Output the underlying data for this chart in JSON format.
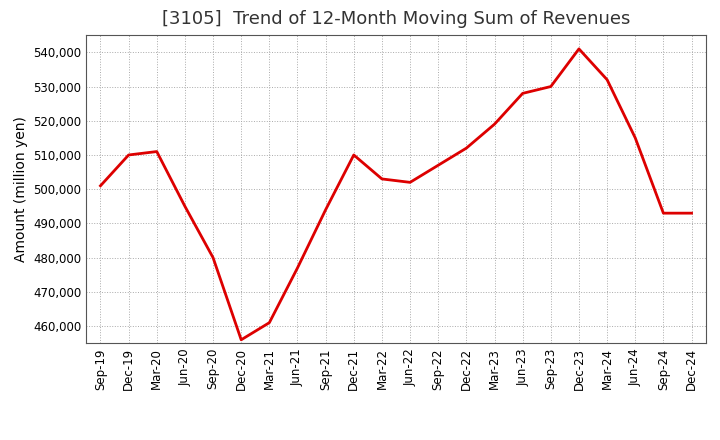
{
  "title": "[3105]  Trend of 12-Month Moving Sum of Revenues",
  "ylabel": "Amount (million yen)",
  "line_color": "#dd0000",
  "background_color": "#ffffff",
  "plot_bg_color": "#ffffff",
  "grid_color": "#aaaaaa",
  "x_labels": [
    "Sep-19",
    "Dec-19",
    "Mar-20",
    "Jun-20",
    "Sep-20",
    "Dec-20",
    "Mar-21",
    "Jun-21",
    "Sep-21",
    "Dec-21",
    "Mar-22",
    "Jun-22",
    "Sep-22",
    "Dec-22",
    "Mar-23",
    "Jun-23",
    "Sep-23",
    "Dec-23",
    "Mar-24",
    "Jun-24",
    "Sep-24",
    "Dec-24"
  ],
  "values": [
    501000,
    510000,
    511000,
    495000,
    480000,
    456000,
    461000,
    477000,
    494000,
    510000,
    503000,
    502000,
    507000,
    512000,
    519000,
    528000,
    530000,
    541000,
    532000,
    515000,
    493000,
    493000
  ],
  "ylim": [
    455000,
    545000
  ],
  "yticks": [
    460000,
    470000,
    480000,
    490000,
    500000,
    510000,
    520000,
    530000,
    540000
  ],
  "title_fontsize": 13,
  "tick_fontsize": 8.5,
  "ylabel_fontsize": 10,
  "line_width": 2.0
}
